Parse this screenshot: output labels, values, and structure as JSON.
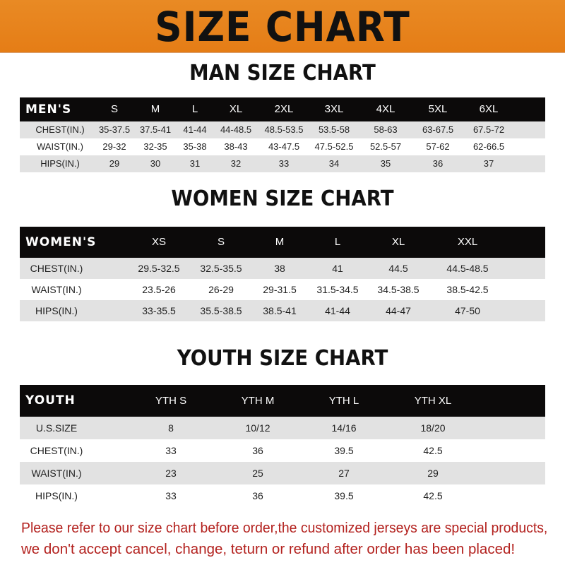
{
  "banner": {
    "title": "SIZE CHART",
    "color": "#e8821e"
  },
  "men": {
    "title": "MAN SIZE CHART",
    "header": [
      "MEN'S",
      "S",
      "M",
      "L",
      "XL",
      "2XL",
      "3XL",
      "4XL",
      "5XL",
      "6XL"
    ],
    "rows": [
      [
        "CHEST(IN.)",
        "35-37.5",
        "37.5-41",
        "41-44",
        "44-48.5",
        "48.5-53.5",
        "53.5-58",
        "58-63",
        "63-67.5",
        "67.5-72"
      ],
      [
        "WAIST(IN.)",
        "29-32",
        "32-35",
        "35-38",
        "38-43",
        "43-47.5",
        "47.5-52.5",
        "52.5-57",
        "57-62",
        "62-66.5"
      ],
      [
        "HIPS(IN.)",
        "29",
        "30",
        "31",
        "32",
        "33",
        "34",
        "35",
        "36",
        "37"
      ]
    ]
  },
  "women": {
    "title": "WOMEN SIZE CHART",
    "header": [
      "WOMEN'S",
      "XS",
      "S",
      "M",
      "L",
      "XL",
      "XXL"
    ],
    "rows": [
      [
        "CHEST(IN.)",
        "29.5-32.5",
        "32.5-35.5",
        "38",
        "41",
        "44.5",
        "44.5-48.5"
      ],
      [
        "WAIST(IN.)",
        "23.5-26",
        "26-29",
        "29-31.5",
        "31.5-34.5",
        "34.5-38.5",
        "38.5-42.5"
      ],
      [
        "HIPS(IN.)",
        "33-35.5",
        "35.5-38.5",
        "38.5-41",
        "41-44",
        "44-47",
        "47-50"
      ]
    ]
  },
  "youth": {
    "title": "YOUTH SIZE CHART",
    "header": [
      "YOUTH",
      "YTH S",
      "YTH M",
      "YTH L",
      "YTH XL"
    ],
    "rows": [
      [
        "U.S.SIZE",
        "8",
        "10/12",
        "14/16",
        "18/20"
      ],
      [
        "CHEST(IN.)",
        "33",
        "36",
        "39.5",
        "42.5"
      ],
      [
        "WAIST(IN.)",
        "23",
        "25",
        "27",
        "29"
      ],
      [
        "HIPS(IN.)",
        "33",
        "36",
        "39.5",
        "42.5"
      ]
    ]
  },
  "footer": {
    "line1": "Please refer to our size chart before order,the customized jerseys are special products,",
    "line2": "we don't accept cancel, change, teturn or refund after order has been placed!",
    "color": "#b3211e"
  }
}
